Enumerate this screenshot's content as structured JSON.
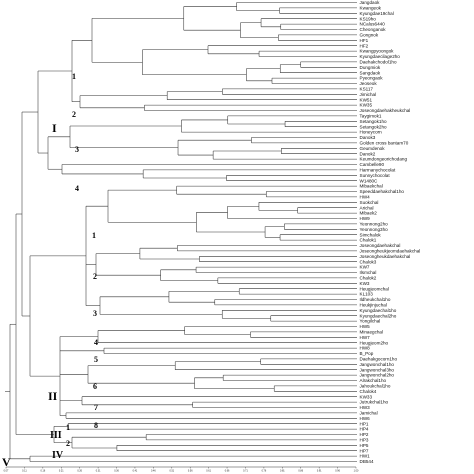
{
  "dendrogram": {
    "leaves": [
      "Jangdaok",
      "Kwangeok",
      "Kyungdae19chal",
      "KS19ho",
      "NCalus6440",
      "Cheonganok",
      "Gongnok",
      "HF1",
      "HF2",
      "Kwangpyoongok",
      "Kyungdaecilage2ho",
      "Daehakchodol1ho",
      "Dungmiok",
      "Sangdaok",
      "Pyeongaok",
      "Jeoseok",
      "KS117",
      "Jimichal",
      "KW51",
      "KW35",
      "Joseongdaehakheukchal",
      "Taygimok1",
      "Setangok1ho",
      "Setangok2ho",
      "Honeycorn",
      "Danok3",
      "Golden cross bantam70",
      "Geumdenok",
      "Danok2",
      "Keumdongeorichodang",
      "Cambelle90",
      "Harmanychocolat",
      "Sunnychocolat",
      "W1480C",
      "Mibaekchal",
      "Speeddaehakchal1ho",
      "HW4",
      "Suokchal",
      "Arichal",
      "Mibaek2",
      "HW9",
      "Yeonnong2ho",
      "Yeonnong3ho",
      "Simchalok",
      "Chalok1",
      "Joseongdaehakchal",
      "Joseongheukjeomdaehakchal",
      "Joseongheukdaehakchal",
      "Chalok3",
      "KW7",
      "Ilsmchal",
      "Chalok2",
      "KW3",
      "Heugjeomchal",
      "KL103",
      "Ildheukchal1ho",
      "Heukjinjuchal",
      "Kyungdaechal1ho",
      "Kyungdaechal2ho",
      "Yongilchal",
      "HW5",
      "Minaegchal",
      "HW7",
      "Heugjeom2ho",
      "HW8",
      "B_Pop",
      "Daehakgocorn1ho",
      "Jangwonchal1ho",
      "Jangwonchal3ho",
      "Jangwonchal2ho",
      "Alrakchal1ho",
      "Jahoukchal1ho",
      "Chalok4",
      "KW33",
      "Jutrukchal1ho",
      "HW3",
      "Jamichal",
      "HW6",
      "HP1",
      "HP4",
      "HP2",
      "HP3",
      "HP5",
      "HP7",
      "HW1",
      "DB544"
    ],
    "group_labels": [
      "I",
      "II",
      "III",
      "IV",
      "V"
    ],
    "subgroup_labels": [
      "1",
      "2",
      "3",
      "4",
      "1",
      "2",
      "3",
      "4",
      "5",
      "6",
      "7",
      "8",
      "1",
      "2"
    ],
    "axis_ticks": [
      "0.07",
      "0.11",
      "0.16",
      "0.21",
      "0.26",
      "0.31",
      "0.36",
      "0.41",
      "0.46",
      "0.51",
      "0.56",
      "0.61",
      "0.66",
      "0.71",
      "0.76",
      "0.81",
      "0.86",
      "0.91",
      "0.96",
      "1.00"
    ]
  }
}
